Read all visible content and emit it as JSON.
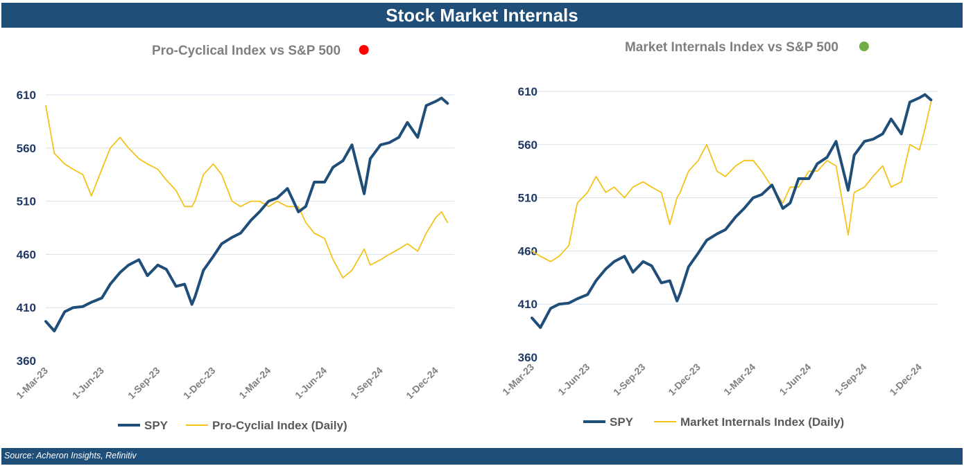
{
  "header": {
    "title": "Stock Market Internals"
  },
  "footer": {
    "source": "Source: Acheron Insights, Refinitiv"
  },
  "colors": {
    "spy": "#1f4e79",
    "index": "#f5c21b",
    "grid": "#d9e1ec",
    "title_bar": "#1f4e79"
  },
  "chart_data": [
    {
      "type": "line",
      "title": "Pro-Cyclical Index vs S&P 500",
      "status_dot": "red",
      "status_color": "#ff0000",
      "xlabel": "",
      "ylabel": "",
      "ylim": [
        360,
        610
      ],
      "yticks": [
        "360",
        "410",
        "460",
        "510",
        "560",
        "610"
      ],
      "x_tick_labels": [
        "1-Mar-23",
        "1-Jun-23",
        "1-Sep-23",
        "1-Dec-23",
        "1-Mar-24",
        "1-Jun-24",
        "1-Sep-24",
        "1-Dec-24"
      ],
      "x": [
        "2023-03-01",
        "2023-03-15",
        "2023-04-01",
        "2023-04-15",
        "2023-05-01",
        "2023-05-15",
        "2023-06-01",
        "2023-06-15",
        "2023-07-01",
        "2023-07-15",
        "2023-08-01",
        "2023-08-15",
        "2023-09-01",
        "2023-09-15",
        "2023-10-01",
        "2023-10-15",
        "2023-10-27",
        "2023-11-01",
        "2023-11-15",
        "2023-12-01",
        "2023-12-15",
        "2024-01-01",
        "2024-01-15",
        "2024-02-01",
        "2024-02-15",
        "2024-03-01",
        "2024-03-15",
        "2024-04-01",
        "2024-04-19",
        "2024-05-01",
        "2024-05-15",
        "2024-06-01",
        "2024-06-15",
        "2024-07-01",
        "2024-07-16",
        "2024-08-05",
        "2024-08-15",
        "2024-09-01",
        "2024-09-15",
        "2024-10-01",
        "2024-10-15",
        "2024-11-01",
        "2024-11-15",
        "2024-12-01",
        "2024-12-10",
        "2024-12-20"
      ],
      "series": [
        {
          "name": "SPY",
          "values": [
            397,
            388,
            406,
            410,
            411,
            415,
            419,
            432,
            443,
            450,
            455,
            440,
            450,
            446,
            430,
            432,
            413,
            420,
            445,
            458,
            470,
            476,
            480,
            492,
            500,
            510,
            513,
            522,
            500,
            505,
            528,
            528,
            542,
            548,
            563,
            517,
            550,
            563,
            565,
            570,
            584,
            570,
            600,
            604,
            607,
            602
          ]
        },
        {
          "name": "Pro-Cyclial Index (Daily)",
          "values": [
            600,
            555,
            545,
            540,
            535,
            515,
            540,
            560,
            570,
            560,
            550,
            545,
            540,
            530,
            520,
            505,
            505,
            510,
            535,
            545,
            535,
            510,
            505,
            510,
            510,
            505,
            510,
            505,
            505,
            490,
            480,
            475,
            455,
            438,
            445,
            465,
            450,
            455,
            460,
            465,
            470,
            463,
            480,
            495,
            500,
            490
          ]
        }
      ],
      "legend": [
        "SPY",
        "Pro-Cyclial Index (Daily)"
      ],
      "legend_position": "bottom"
    },
    {
      "type": "line",
      "title": "Market Internals Index vs S&P 500",
      "status_dot": "green",
      "status_color": "#70ad47",
      "xlabel": "",
      "ylabel": "",
      "ylim": [
        360,
        610
      ],
      "yticks": [
        "360",
        "410",
        "460",
        "510",
        "560",
        "610"
      ],
      "x_tick_labels": [
        "1-Mar-23",
        "1-Jun-23",
        "1-Sep-23",
        "1-Dec-23",
        "1-Mar-24",
        "1-Jun-24",
        "1-Sep-24",
        "1-Dec-24"
      ],
      "x": [
        "2023-03-01",
        "2023-03-15",
        "2023-04-01",
        "2023-04-15",
        "2023-05-01",
        "2023-05-15",
        "2023-06-01",
        "2023-06-15",
        "2023-07-01",
        "2023-07-15",
        "2023-08-01",
        "2023-08-15",
        "2023-09-01",
        "2023-09-15",
        "2023-10-01",
        "2023-10-15",
        "2023-10-27",
        "2023-11-01",
        "2023-11-15",
        "2023-12-01",
        "2023-12-15",
        "2024-01-01",
        "2024-01-15",
        "2024-02-01",
        "2024-02-15",
        "2024-03-01",
        "2024-03-15",
        "2024-04-01",
        "2024-04-19",
        "2024-05-01",
        "2024-05-15",
        "2024-06-01",
        "2024-06-15",
        "2024-07-01",
        "2024-07-16",
        "2024-08-05",
        "2024-08-15",
        "2024-09-01",
        "2024-09-15",
        "2024-10-01",
        "2024-10-15",
        "2024-11-01",
        "2024-11-15",
        "2024-12-01",
        "2024-12-10",
        "2024-12-20"
      ],
      "series": [
        {
          "name": "SPY",
          "values": [
            397,
            388,
            406,
            410,
            411,
            415,
            419,
            432,
            443,
            450,
            455,
            440,
            450,
            446,
            430,
            432,
            413,
            420,
            445,
            458,
            470,
            476,
            480,
            492,
            500,
            510,
            513,
            522,
            500,
            505,
            528,
            528,
            542,
            548,
            563,
            517,
            550,
            563,
            565,
            570,
            584,
            570,
            600,
            604,
            607,
            602
          ]
        },
        {
          "name": "Market Internals Index (Daily)",
          "values": [
            460,
            455,
            450,
            455,
            465,
            505,
            515,
            530,
            515,
            520,
            510,
            520,
            525,
            520,
            515,
            485,
            510,
            515,
            535,
            545,
            560,
            535,
            530,
            540,
            545,
            545,
            535,
            520,
            505,
            520,
            520,
            535,
            535,
            545,
            540,
            475,
            515,
            520,
            530,
            540,
            520,
            525,
            560,
            555,
            575,
            600
          ]
        }
      ],
      "legend": [
        "SPY",
        "Market Internals Index (Daily)"
      ],
      "legend_position": "bottom"
    }
  ]
}
